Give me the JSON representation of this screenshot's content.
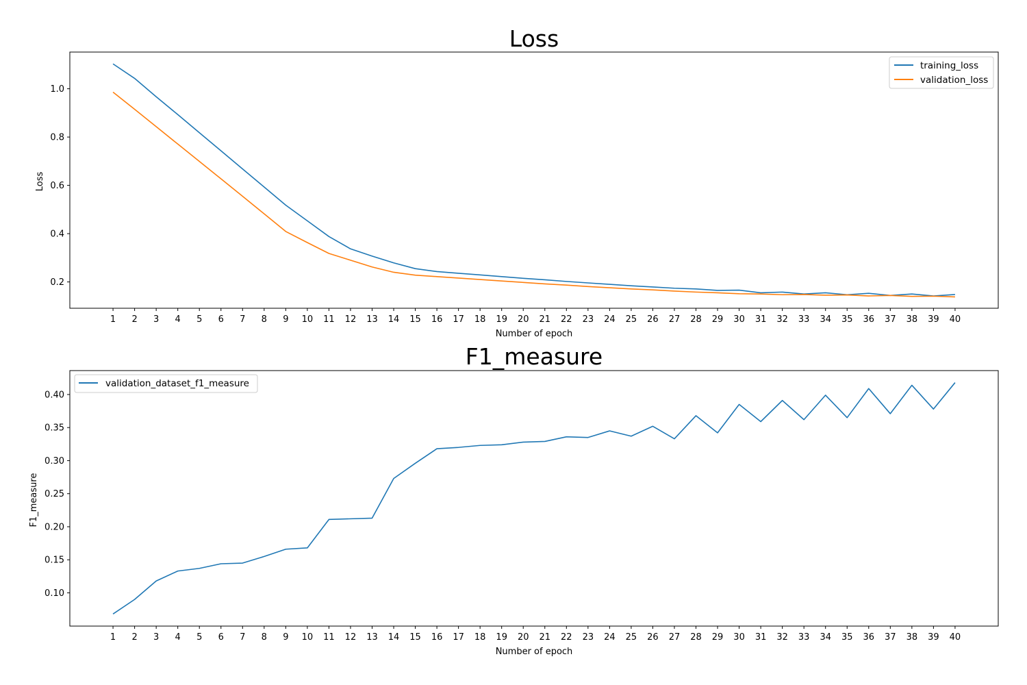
{
  "chart_data": [
    {
      "type": "line",
      "title": "Loss",
      "xlabel": "Number of epoch",
      "ylabel": "Loss",
      "x": [
        1,
        2,
        3,
        4,
        5,
        6,
        7,
        8,
        9,
        10,
        11,
        12,
        13,
        14,
        15,
        16,
        17,
        18,
        19,
        20,
        21,
        22,
        23,
        24,
        25,
        26,
        27,
        28,
        29,
        30,
        31,
        32,
        33,
        34,
        35,
        36,
        37,
        38,
        39,
        40
      ],
      "series": [
        {
          "name": "training_loss",
          "color": "#1f77b4",
          "values": [
            1.103,
            1.043,
            0.967,
            0.893,
            0.818,
            0.743,
            0.668,
            0.593,
            0.518,
            0.453,
            0.388,
            0.337,
            0.307,
            0.279,
            0.255,
            0.243,
            0.236,
            0.229,
            0.222,
            0.215,
            0.209,
            0.202,
            0.196,
            0.19,
            0.184,
            0.179,
            0.174,
            0.171,
            0.165,
            0.166,
            0.155,
            0.158,
            0.15,
            0.155,
            0.147,
            0.153,
            0.144,
            0.15,
            0.142,
            0.148
          ]
        },
        {
          "name": "validation_loss",
          "color": "#ff7f0e",
          "values": [
            0.986,
            0.915,
            0.843,
            0.771,
            0.699,
            0.627,
            0.555,
            0.482,
            0.409,
            0.363,
            0.318,
            0.29,
            0.262,
            0.24,
            0.228,
            0.222,
            0.216,
            0.21,
            0.204,
            0.198,
            0.192,
            0.187,
            0.181,
            0.176,
            0.171,
            0.167,
            0.162,
            0.158,
            0.155,
            0.151,
            0.15,
            0.147,
            0.148,
            0.145,
            0.146,
            0.142,
            0.144,
            0.14,
            0.141,
            0.138
          ]
        }
      ],
      "xticks": [
        "1",
        "2",
        "3",
        "4",
        "5",
        "6",
        "7",
        "8",
        "9",
        "10",
        "11",
        "12",
        "13",
        "14",
        "15",
        "16",
        "17",
        "18",
        "19",
        "20",
        "21",
        "22",
        "23",
        "24",
        "25",
        "26",
        "27",
        "28",
        "29",
        "30",
        "31",
        "32",
        "33",
        "34",
        "35",
        "36",
        "37",
        "38",
        "39",
        "40"
      ],
      "yticks": [
        "0.2",
        "0.4",
        "0.6",
        "0.8",
        "1.0"
      ],
      "ytick_values": [
        0.2,
        0.4,
        0.6,
        0.8,
        1.0
      ],
      "xlim": [
        -1,
        42
      ],
      "ylim": [
        0.091,
        1.152
      ],
      "grid": false,
      "legend_position": "top-right"
    },
    {
      "type": "line",
      "title": "F1_measure",
      "xlabel": "Number of epoch",
      "ylabel": "F1_measure",
      "x": [
        1,
        2,
        3,
        4,
        5,
        6,
        7,
        8,
        9,
        10,
        11,
        12,
        13,
        14,
        15,
        16,
        17,
        18,
        19,
        20,
        21,
        22,
        23,
        24,
        25,
        26,
        27,
        28,
        29,
        30,
        31,
        32,
        33,
        34,
        35,
        36,
        37,
        38,
        39,
        40
      ],
      "series": [
        {
          "name": "validation_dataset_f1_measure",
          "color": "#1f77b4",
          "values": [
            0.068,
            0.09,
            0.118,
            0.133,
            0.137,
            0.144,
            0.145,
            0.155,
            0.166,
            0.168,
            0.211,
            0.212,
            0.213,
            0.273,
            0.296,
            0.318,
            0.32,
            0.323,
            0.324,
            0.328,
            0.329,
            0.336,
            0.335,
            0.345,
            0.337,
            0.352,
            0.333,
            0.368,
            0.342,
            0.385,
            0.359,
            0.391,
            0.362,
            0.399,
            0.365,
            0.409,
            0.371,
            0.414,
            0.378,
            0.418
          ]
        }
      ],
      "xticks": [
        "1",
        "2",
        "3",
        "4",
        "5",
        "6",
        "7",
        "8",
        "9",
        "10",
        "11",
        "12",
        "13",
        "14",
        "15",
        "16",
        "17",
        "18",
        "19",
        "20",
        "21",
        "22",
        "23",
        "24",
        "25",
        "26",
        "27",
        "28",
        "29",
        "30",
        "31",
        "32",
        "33",
        "34",
        "35",
        "36",
        "37",
        "38",
        "39",
        "40"
      ],
      "yticks": [
        "0.10",
        "0.15",
        "0.20",
        "0.25",
        "0.30",
        "0.35",
        "0.40"
      ],
      "ytick_values": [
        0.1,
        0.15,
        0.2,
        0.25,
        0.3,
        0.35,
        0.4
      ],
      "xlim": [
        -1,
        42
      ],
      "ylim": [
        0.0497,
        0.4362
      ],
      "grid": false,
      "legend_position": "top-left"
    }
  ]
}
